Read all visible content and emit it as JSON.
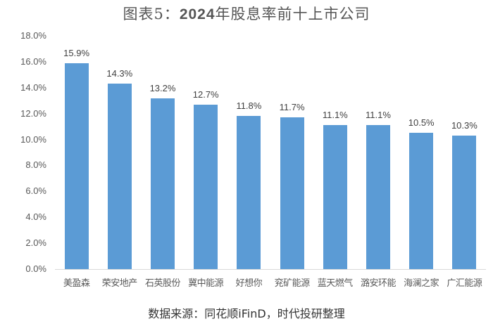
{
  "title": {
    "prefix": "图表5：",
    "year": "2024",
    "rest": "年股息率前十上市公司"
  },
  "source": "数据来源：同花顺iFinD，时代投研整理",
  "colors": {
    "bar": "#5B9BD5",
    "axis": "#D9D9D9",
    "text": "#595959"
  },
  "chart_data": {
    "type": "bar",
    "title": "图表5：2024年股息率前十上市公司",
    "xlabel": "",
    "ylabel": "",
    "categories": [
      "美盈森",
      "荣安地产",
      "石英股份",
      "冀中能源",
      "好想你",
      "兖矿能源",
      "蓝天燃气",
      "潞安环能",
      "海澜之家",
      "广汇能源"
    ],
    "values": [
      15.9,
      14.3,
      13.2,
      12.7,
      11.8,
      11.7,
      11.1,
      11.1,
      10.5,
      10.3
    ],
    "value_labels": [
      "15.9%",
      "14.3%",
      "13.2%",
      "12.7%",
      "11.8%",
      "11.7%",
      "11.1%",
      "11.1%",
      "10.5%",
      "10.3%"
    ],
    "yticks": [
      "0.0%",
      "2.0%",
      "4.0%",
      "6.0%",
      "8.0%",
      "10.0%",
      "12.0%",
      "14.0%",
      "16.0%",
      "18.0%"
    ],
    "ylim": [
      0,
      18
    ],
    "grid": false,
    "legend": null,
    "units": "%"
  }
}
